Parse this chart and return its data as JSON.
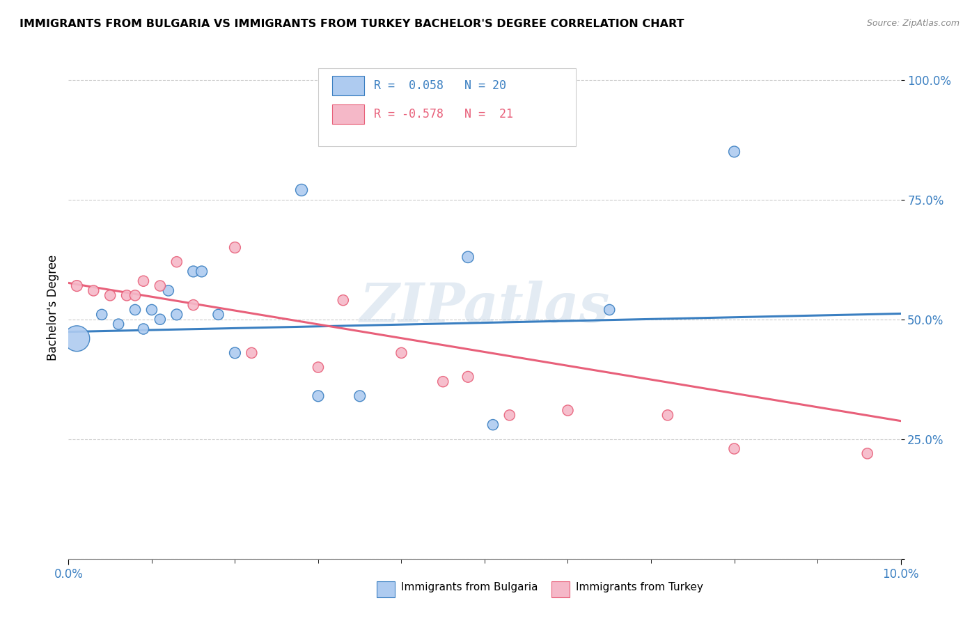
{
  "title": "IMMIGRANTS FROM BULGARIA VS IMMIGRANTS FROM TURKEY BACHELOR'S DEGREE CORRELATION CHART",
  "source": "Source: ZipAtlas.com",
  "ylabel": "Bachelor's Degree",
  "xlim": [
    0.0,
    0.1
  ],
  "ylim": [
    0.0,
    1.05
  ],
  "yticks": [
    0.0,
    0.25,
    0.5,
    0.75,
    1.0
  ],
  "ytick_labels": [
    "",
    "25.0%",
    "50.0%",
    "75.0%",
    "100.0%"
  ],
  "r_bulgaria": 0.058,
  "n_bulgaria": 20,
  "r_turkey": -0.578,
  "n_turkey": 21,
  "color_bulgaria": "#aecbf0",
  "color_turkey": "#f5b8c8",
  "color_line_bulgaria": "#3a7fc1",
  "color_line_turkey": "#e8607a",
  "watermark": "ZIPatlas",
  "bulgaria_x": [
    0.001,
    0.004,
    0.006,
    0.008,
    0.009,
    0.01,
    0.011,
    0.012,
    0.013,
    0.015,
    0.016,
    0.018,
    0.02,
    0.028,
    0.03,
    0.035,
    0.048,
    0.051,
    0.065,
    0.08
  ],
  "bulgaria_y": [
    0.46,
    0.51,
    0.49,
    0.52,
    0.48,
    0.52,
    0.5,
    0.56,
    0.51,
    0.6,
    0.6,
    0.51,
    0.43,
    0.77,
    0.34,
    0.34,
    0.63,
    0.28,
    0.52,
    0.85
  ],
  "bulgaria_size": [
    700,
    120,
    120,
    120,
    120,
    120,
    120,
    120,
    130,
    130,
    130,
    120,
    130,
    150,
    130,
    130,
    140,
    120,
    120,
    130
  ],
  "turkey_x": [
    0.001,
    0.003,
    0.005,
    0.007,
    0.008,
    0.009,
    0.011,
    0.013,
    0.015,
    0.02,
    0.022,
    0.03,
    0.033,
    0.04,
    0.045,
    0.048,
    0.053,
    0.06,
    0.072,
    0.08,
    0.096
  ],
  "turkey_y": [
    0.57,
    0.56,
    0.55,
    0.55,
    0.55,
    0.58,
    0.57,
    0.62,
    0.53,
    0.65,
    0.43,
    0.4,
    0.54,
    0.43,
    0.37,
    0.38,
    0.3,
    0.31,
    0.3,
    0.23,
    0.22
  ],
  "turkey_size": [
    130,
    120,
    120,
    120,
    120,
    120,
    120,
    120,
    120,
    130,
    120,
    120,
    120,
    120,
    120,
    130,
    120,
    120,
    120,
    120,
    120
  ],
  "line_bulgaria_y0": 0.474,
  "line_bulgaria_y1": 0.512,
  "line_turkey_y0": 0.576,
  "line_turkey_y1": 0.288
}
